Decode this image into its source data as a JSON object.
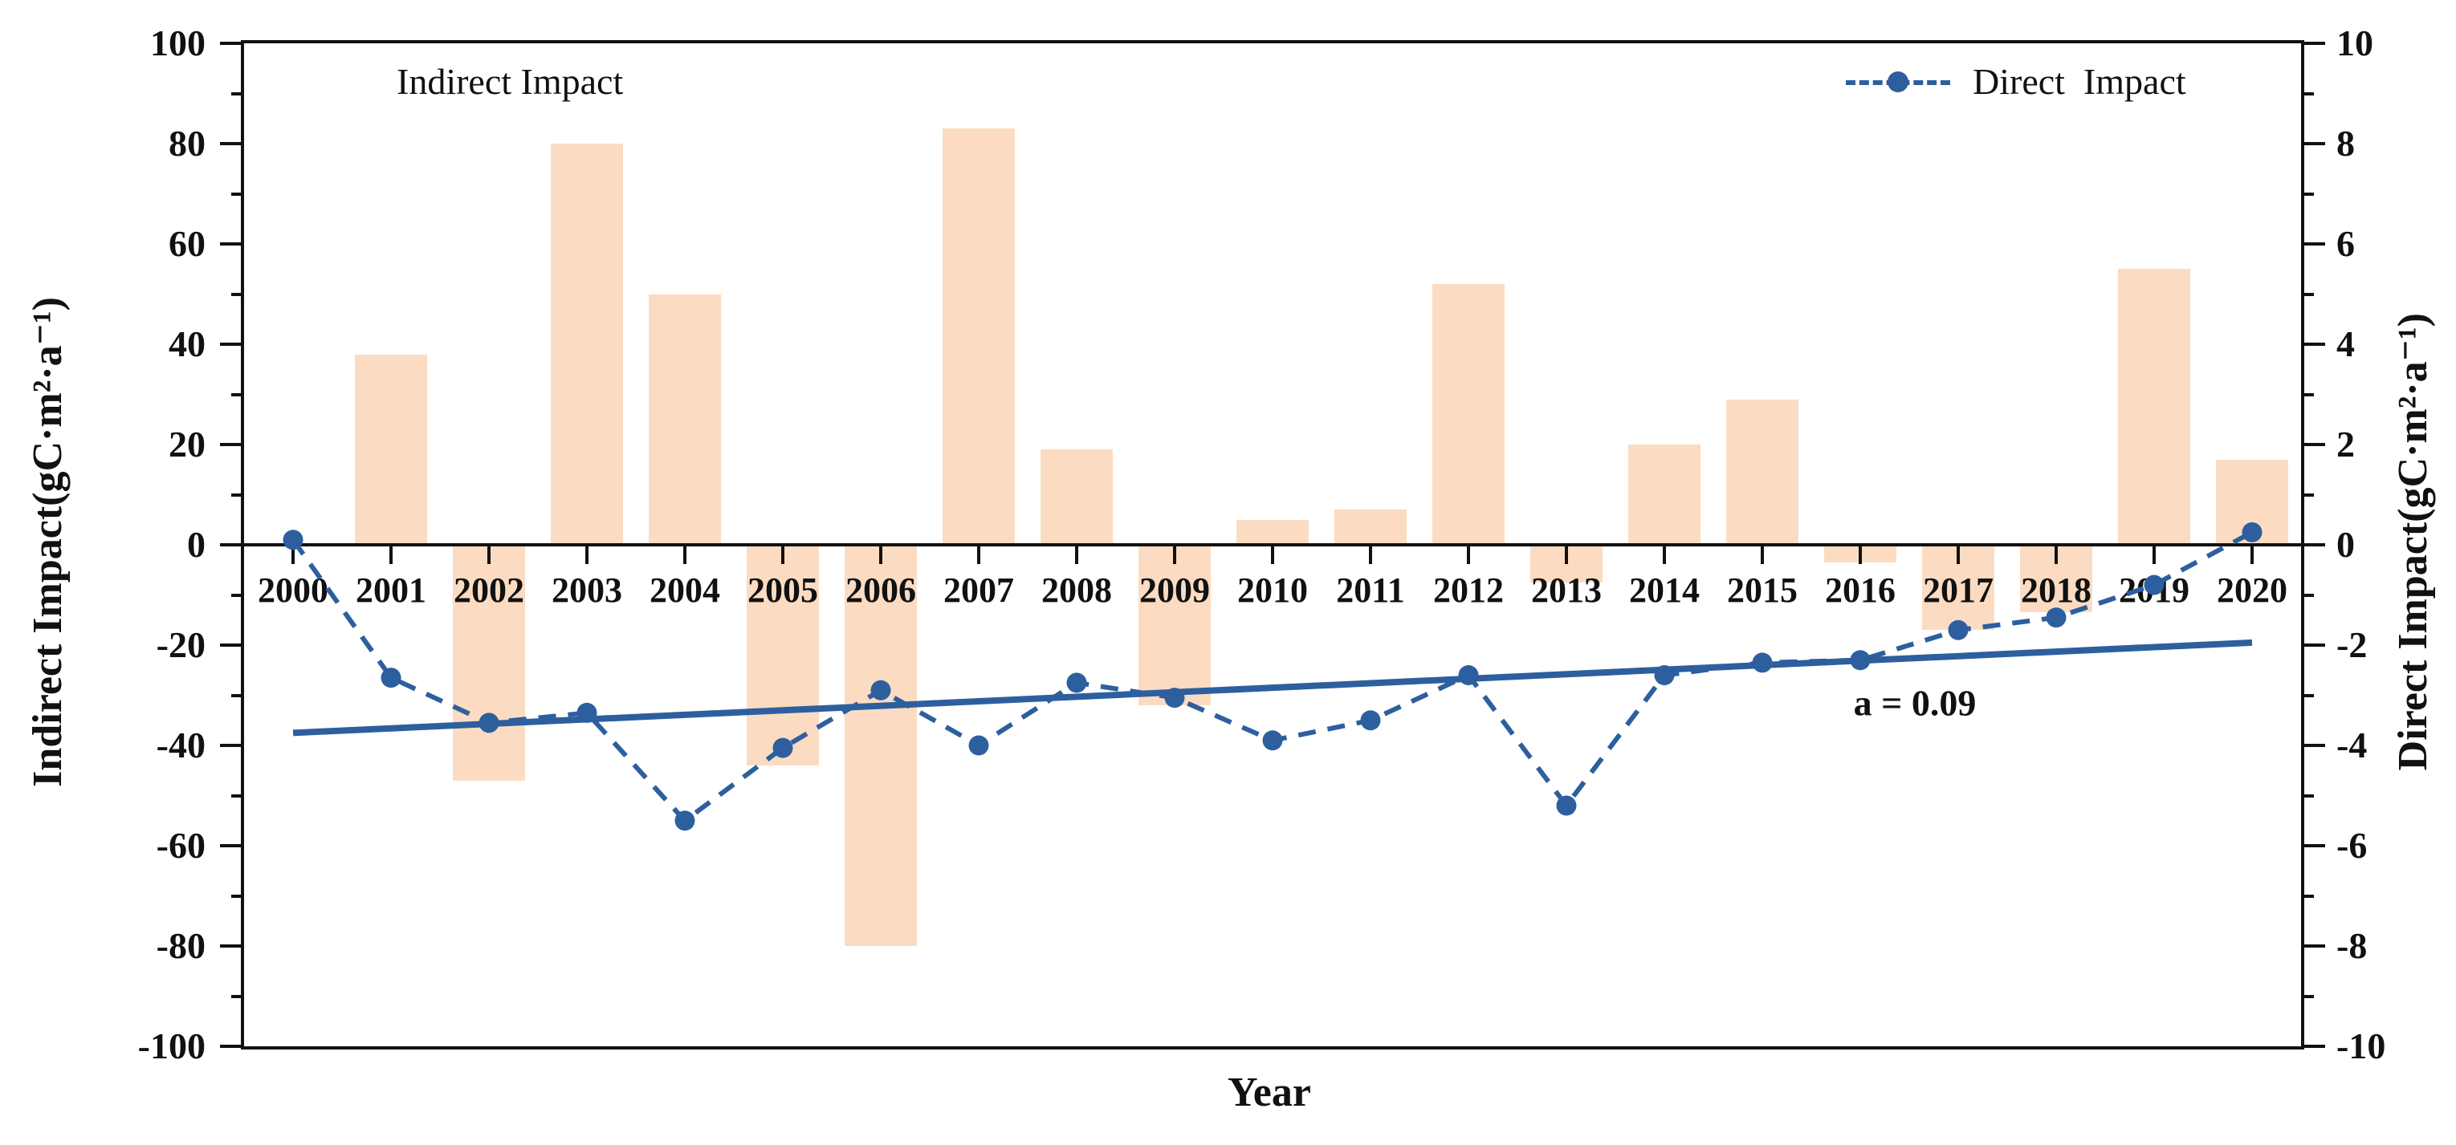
{
  "figure": {
    "annotation": "a = 0.09",
    "legend_indirect_label": "Indirect Impact",
    "legend_direct_label": "Direct  Impact",
    "background": "#ffffff",
    "frame_color": "#111111"
  },
  "chart_data": {
    "type": "bar",
    "subtype": "bar-plus-dashed-line-dual-axis",
    "categories": [
      "2000",
      "2001",
      "2002",
      "2003",
      "2004",
      "2005",
      "2006",
      "2007",
      "2008",
      "2009",
      "2010",
      "2011",
      "2012",
      "2013",
      "2014",
      "2015",
      "2016",
      "2017",
      "2018",
      "2019",
      "2020"
    ],
    "series": [
      {
        "name": "Indirect Impact",
        "type": "bar",
        "axis": "left",
        "color": "#fbdcc2",
        "values": [
          0,
          38,
          -47,
          80,
          50,
          -44,
          -80,
          83,
          19,
          -32,
          5,
          7,
          52,
          -7.5,
          20,
          29,
          -3.5,
          -17,
          -13.5,
          55,
          17
        ]
      },
      {
        "name": "Direct Impact",
        "type": "line",
        "style": "dashed-with-dots",
        "axis": "right",
        "color": "#2d5f9f",
        "values": [
          0.1,
          -2.65,
          -3.55,
          -3.35,
          -5.5,
          -4.05,
          -2.9,
          -4.0,
          -2.75,
          -3.05,
          -3.9,
          -3.5,
          -2.6,
          -5.2,
          -2.6,
          -2.35,
          -2.3,
          -1.7,
          -1.45,
          -0.8,
          0.25
        ]
      },
      {
        "name": "Trend of Direct Impact",
        "type": "trendline",
        "axis": "right",
        "color": "#2d5f9f",
        "x": [
          2000,
          2020
        ],
        "y": [
          -3.75,
          -1.95
        ],
        "slope_label": "a = 0.09"
      }
    ],
    "left_axis": {
      "label": "Indirect Impact(gC·m²·a⁻¹)",
      "min": -100,
      "max": 100,
      "major": 20,
      "minor": 10
    },
    "right_axis": {
      "label": "Direct Impact(gC·m²·a⁻¹)",
      "min": -10,
      "max": 10,
      "major": 2,
      "minor": 1
    },
    "x_axis": {
      "label": "Year"
    },
    "legend_position": "inside-top-left-and-top-right",
    "grid": false
  }
}
